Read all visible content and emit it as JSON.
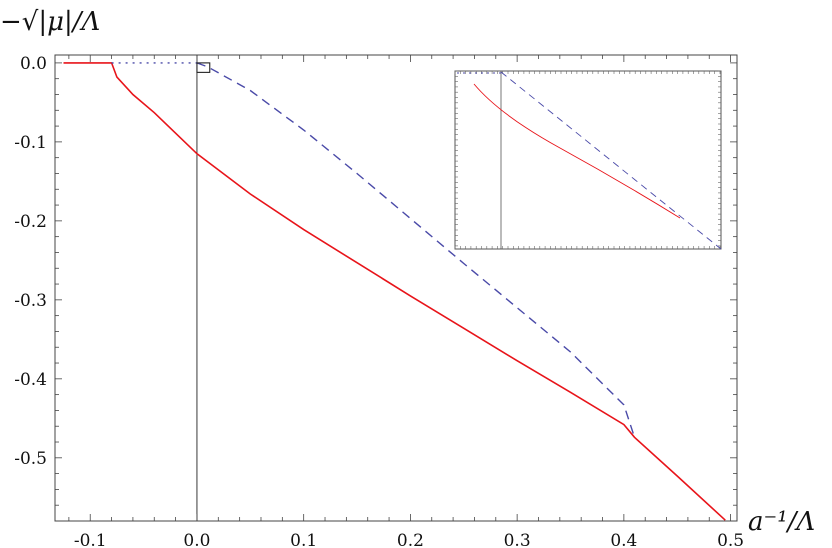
{
  "chart_data": {
    "type": "line",
    "xlabel": "a⁻¹/Λ",
    "ylabel": "−√|μ|/Λ",
    "xlim": [
      -0.133,
      0.506
    ],
    "ylim": [
      -0.58,
      0.01
    ],
    "x_ticks": [
      "-0.1",
      "0.0",
      "0.1",
      "0.2",
      "0.3",
      "0.4",
      "0.5"
    ],
    "y_ticks": [
      "0.0",
      "-0.1",
      "-0.2",
      "-0.3",
      "-0.4",
      "-0.5"
    ],
    "grid": false,
    "series": [
      {
        "style": "solid",
        "color": "#e8141a",
        "x": [
          -0.125,
          -0.08,
          -0.075,
          -0.06,
          -0.04,
          -0.02,
          0.0,
          0.05,
          0.1,
          0.15,
          0.2,
          0.25,
          0.3,
          0.35,
          0.4,
          0.41,
          0.45,
          0.495
        ],
        "y": [
          0.0,
          0.0,
          -0.018,
          -0.04,
          -0.063,
          -0.089,
          -0.115,
          -0.166,
          -0.211,
          -0.253,
          -0.295,
          -0.336,
          -0.377,
          -0.417,
          -0.458,
          -0.474,
          -0.523,
          -0.579
        ]
      },
      {
        "style": "dotted",
        "color": "#4a4aa8",
        "x": [
          -0.08,
          0.0
        ],
        "y": [
          0.0,
          0.0
        ]
      },
      {
        "style": "dashed",
        "color": "#4a4aa8",
        "x": [
          0.0,
          0.01,
          0.05,
          0.1,
          0.15,
          0.2,
          0.25,
          0.3,
          0.35,
          0.4,
          0.41
        ],
        "y": [
          0.0,
          -0.005,
          -0.035,
          -0.085,
          -0.14,
          -0.197,
          -0.254,
          -0.31,
          -0.366,
          -0.433,
          -0.474
        ]
      }
    ],
    "zoom_box": {
      "x": [
        0.0,
        0.012
      ],
      "y": [
        -0.012,
        0.0
      ]
    }
  }
}
